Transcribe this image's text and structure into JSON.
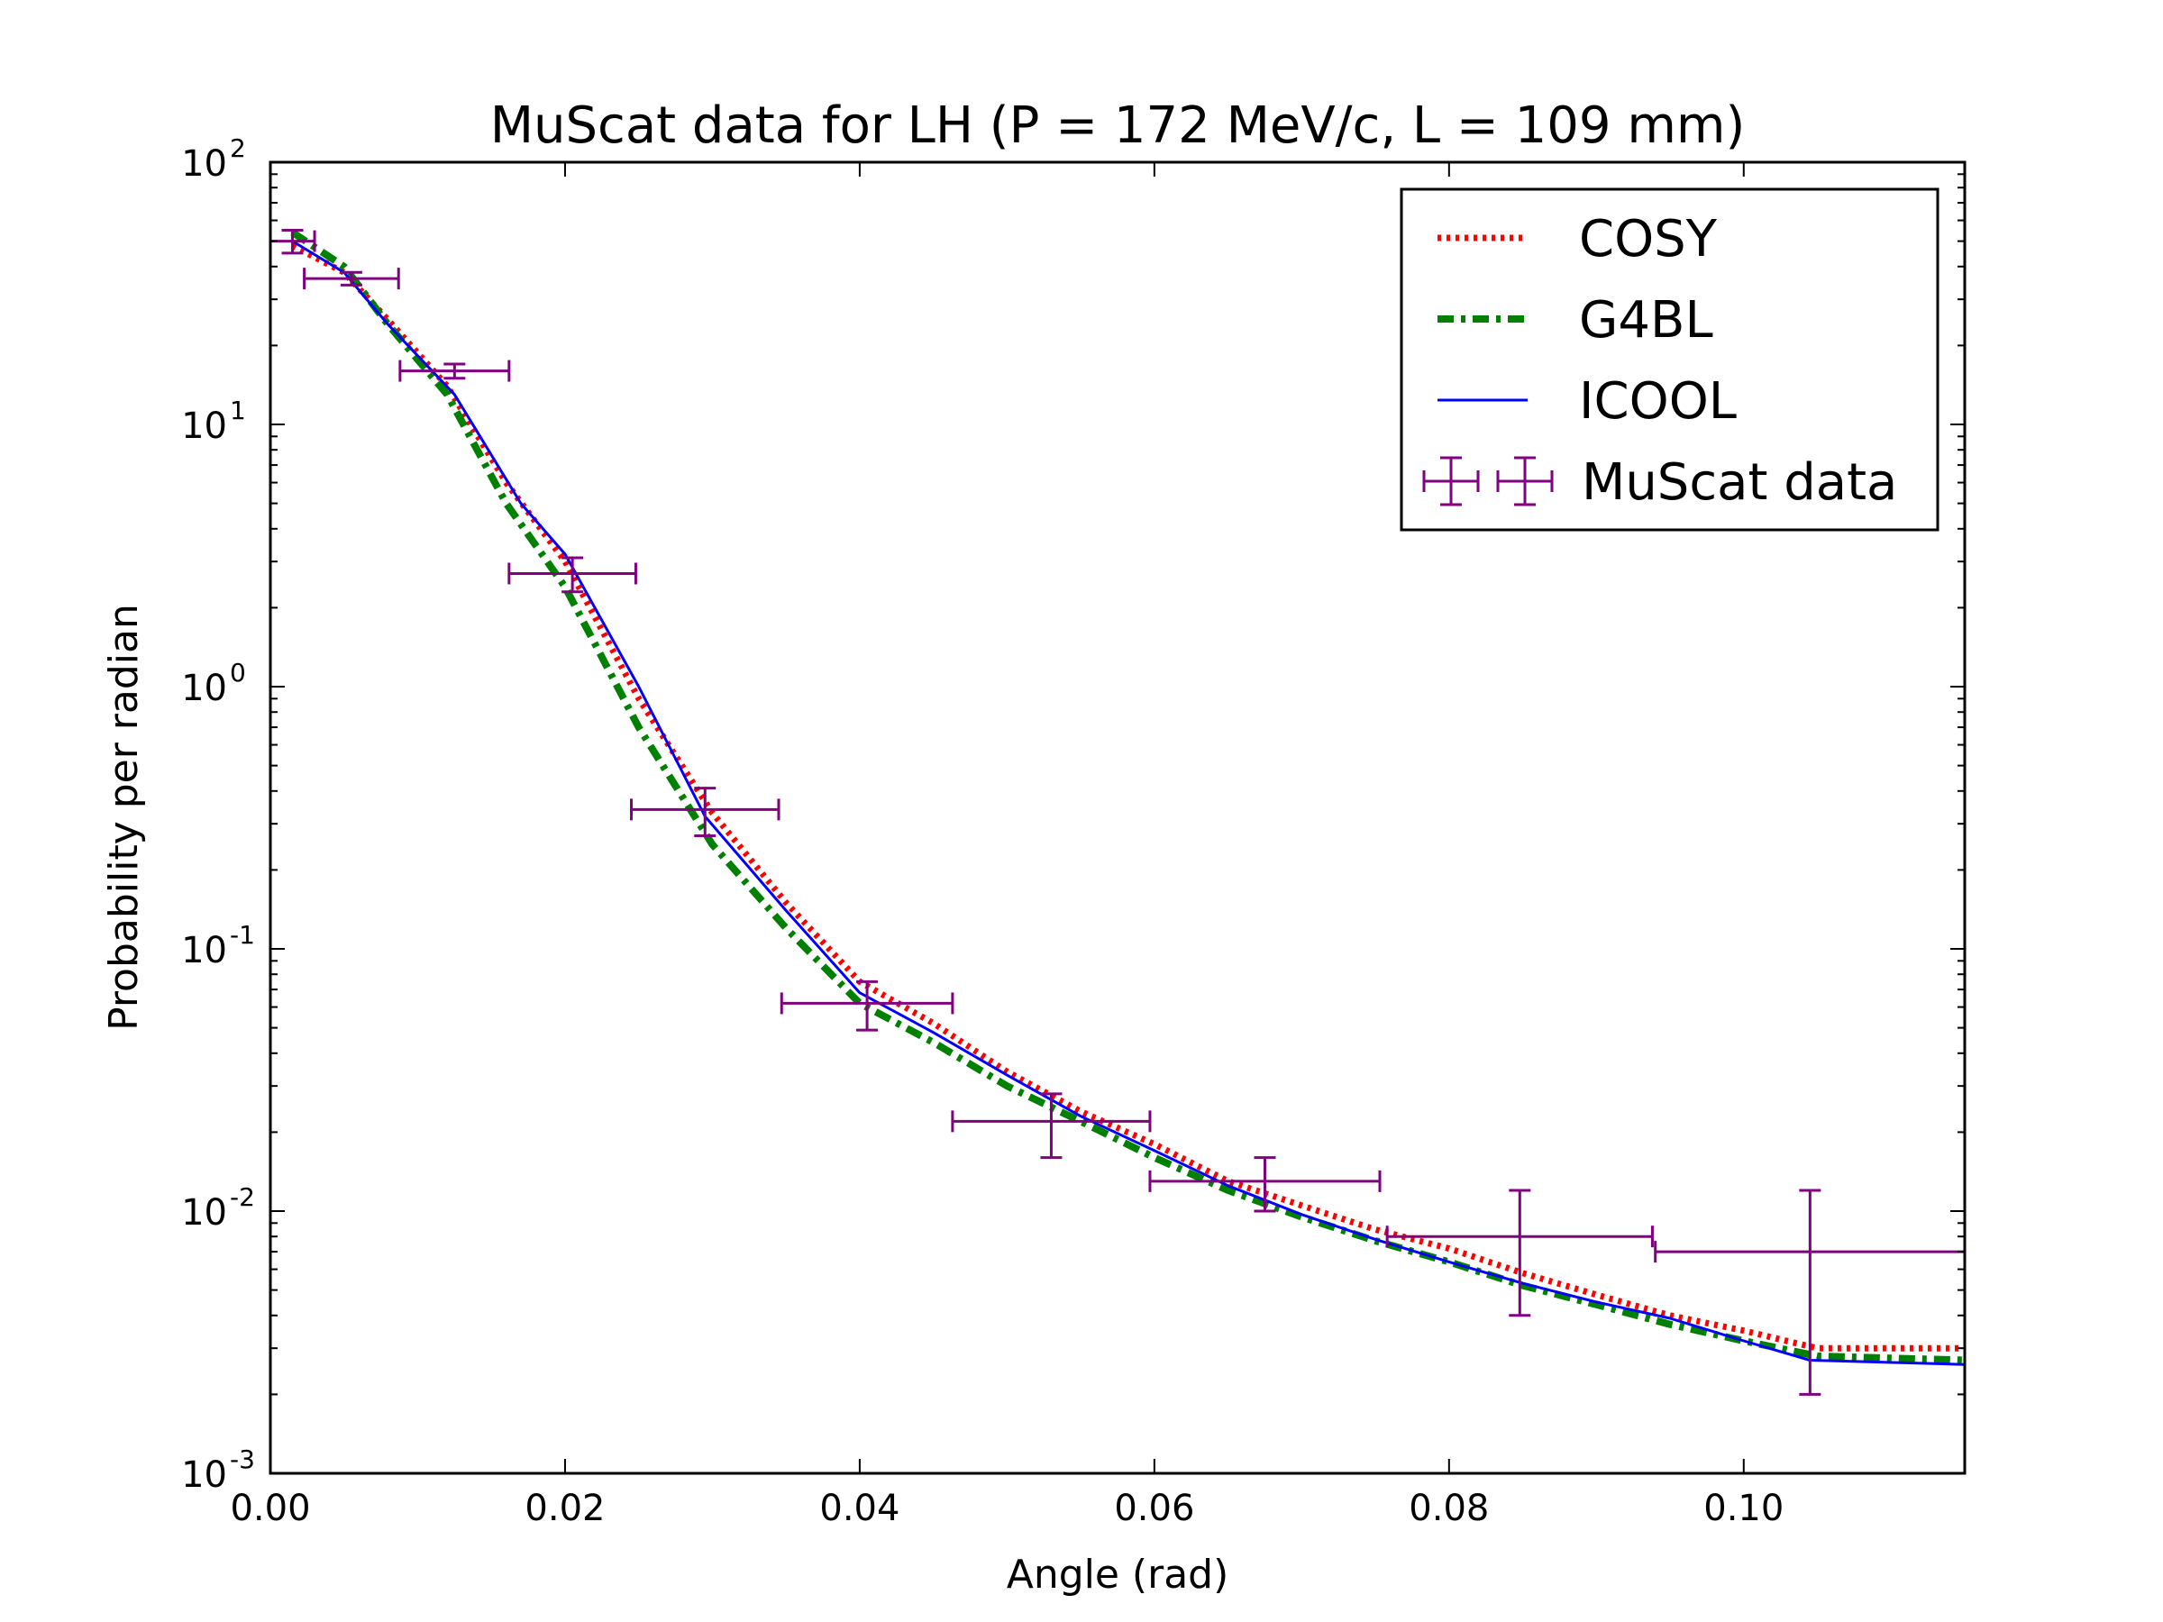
{
  "chart_data": {
    "type": "line",
    "title": "MuScat data for LH (P = 172 MeV/c, L = 109 mm)",
    "xlabel": "Angle (rad)",
    "ylabel": "Probability per radian",
    "xlim": [
      0.0,
      0.115
    ],
    "ylim": [
      0.001,
      100
    ],
    "yscale": "log",
    "x_ticks": [
      "0.00",
      "0.02",
      "0.04",
      "0.06",
      "0.08",
      "0.10"
    ],
    "x_tick_values": [
      0.0,
      0.02,
      0.04,
      0.06,
      0.08,
      0.1
    ],
    "y_ticks": [
      {
        "base": "10",
        "exp": "-3",
        "value": 0.001
      },
      {
        "base": "10",
        "exp": "-2",
        "value": 0.01
      },
      {
        "base": "10",
        "exp": "-1",
        "value": 0.1
      },
      {
        "base": "10",
        "exp": "0",
        "value": 1
      },
      {
        "base": "10",
        "exp": "1",
        "value": 10
      },
      {
        "base": "10",
        "exp": "2",
        "value": 100
      }
    ],
    "grid": false,
    "legend_position": "top-right",
    "series": [
      {
        "name": "COSY",
        "style": "dotted",
        "color": "#ff0000",
        "x": [
          0.0015,
          0.005,
          0.008,
          0.012,
          0.016,
          0.02,
          0.025,
          0.03,
          0.035,
          0.04,
          0.045,
          0.05,
          0.055,
          0.06,
          0.065,
          0.07,
          0.075,
          0.08,
          0.085,
          0.09,
          0.095,
          0.1,
          0.105,
          0.115
        ],
        "y": [
          48,
          38,
          25,
          14,
          6,
          3.0,
          0.9,
          0.33,
          0.15,
          0.075,
          0.052,
          0.034,
          0.024,
          0.018,
          0.013,
          0.0105,
          0.0085,
          0.0072,
          0.0058,
          0.0048,
          0.004,
          0.0035,
          0.003,
          0.003
        ]
      },
      {
        "name": "G4BL",
        "style": "dashdot",
        "color": "#008000",
        "x": [
          0.0015,
          0.005,
          0.008,
          0.012,
          0.016,
          0.02,
          0.025,
          0.03,
          0.035,
          0.04,
          0.045,
          0.05,
          0.055,
          0.06,
          0.065,
          0.07,
          0.075,
          0.08,
          0.085,
          0.09,
          0.095,
          0.1,
          0.105,
          0.115
        ],
        "y": [
          54,
          40,
          24,
          13,
          5.0,
          2.4,
          0.7,
          0.25,
          0.12,
          0.062,
          0.044,
          0.03,
          0.022,
          0.016,
          0.012,
          0.0095,
          0.0077,
          0.0064,
          0.0052,
          0.0044,
          0.0037,
          0.0032,
          0.0028,
          0.0027
        ]
      },
      {
        "name": "ICOOL",
        "style": "solid",
        "color": "#0000ff",
        "x": [
          0.0015,
          0.005,
          0.008,
          0.0125,
          0.017,
          0.02,
          0.025,
          0.0295,
          0.035,
          0.04,
          0.045,
          0.05,
          0.055,
          0.06,
          0.065,
          0.07,
          0.075,
          0.08,
          0.085,
          0.09,
          0.095,
          0.1,
          0.1045,
          0.115
        ],
        "y": [
          50,
          38,
          24,
          13,
          5.0,
          3.2,
          1.0,
          0.32,
          0.14,
          0.068,
          0.048,
          0.033,
          0.023,
          0.017,
          0.0125,
          0.0097,
          0.0078,
          0.0064,
          0.0053,
          0.0045,
          0.0039,
          0.0032,
          0.0027,
          0.0026
        ]
      }
    ],
    "errorbar_series": {
      "name": "MuScat data",
      "color": "#800080",
      "points": [
        {
          "x": 0.0015,
          "y": 50,
          "xerr": 0.0015,
          "ylo": 45,
          "yhi": 55
        },
        {
          "x": 0.0055,
          "y": 36,
          "xerr": 0.0032,
          "ylo": 34,
          "yhi": 38
        },
        {
          "x": 0.0125,
          "y": 16,
          "xerr": 0.0037,
          "ylo": 15,
          "yhi": 17
        },
        {
          "x": 0.0205,
          "y": 2.7,
          "xerr": 0.0043,
          "ylo": 2.3,
          "yhi": 3.1
        },
        {
          "x": 0.0295,
          "y": 0.34,
          "xerr": 0.005,
          "ylo": 0.27,
          "yhi": 0.41
        },
        {
          "x": 0.0405,
          "y": 0.062,
          "xerr": 0.0058,
          "ylo": 0.049,
          "yhi": 0.075
        },
        {
          "x": 0.053,
          "y": 0.022,
          "xerr": 0.0067,
          "ylo": 0.016,
          "yhi": 0.028
        },
        {
          "x": 0.0675,
          "y": 0.013,
          "xerr": 0.0078,
          "ylo": 0.01,
          "yhi": 0.016
        },
        {
          "x": 0.0848,
          "y": 0.008,
          "xerr": 0.009,
          "ylo": 0.004,
          "yhi": 0.012
        },
        {
          "x": 0.1045,
          "y": 0.007,
          "xerr": 0.0105,
          "ylo": 0.002,
          "yhi": 0.012
        }
      ]
    }
  }
}
